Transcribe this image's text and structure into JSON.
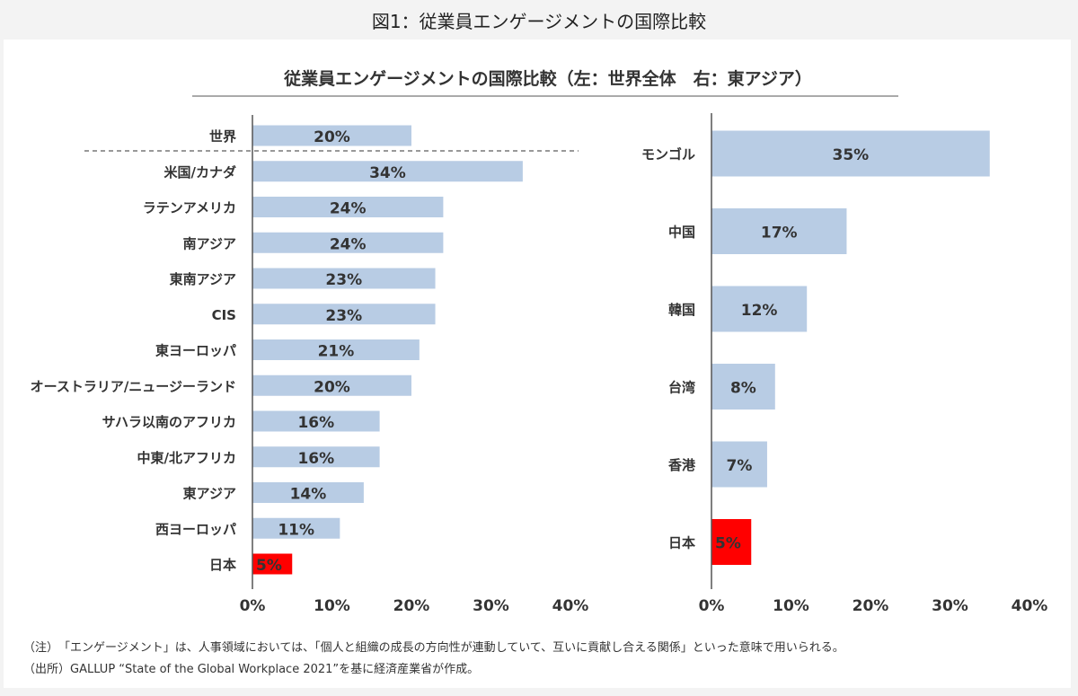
{
  "caption": "図1：従業員エンゲージメントの国際比較",
  "chart_data": [
    {
      "type": "bar",
      "orientation": "horizontal",
      "title": "従業員エンゲージメントの国際比較（左：世界全体　右：東アジア）",
      "categories": [
        "世界",
        "米国/カナダ",
        "ラテンアメリカ",
        "南アジア",
        "東南アジア",
        "CIS",
        "東ヨーロッパ",
        "オーストラリア/ニュージーランド",
        "サハラ以南のアフリカ",
        "中東/北アフリカ",
        "東アジア",
        "西ヨーロッパ",
        "日本"
      ],
      "values": [
        20,
        34,
        24,
        24,
        23,
        23,
        21,
        20,
        16,
        16,
        14,
        11,
        5
      ],
      "value_labels": [
        "20%",
        "34%",
        "24%",
        "24%",
        "23%",
        "23%",
        "21%",
        "20%",
        "16%",
        "16%",
        "14%",
        "11%",
        "5%"
      ],
      "highlight": "日本",
      "xlim": [
        0,
        40
      ],
      "xticks": [
        "0%",
        "10%",
        "20%",
        "30%",
        "40%"
      ]
    },
    {
      "type": "bar",
      "orientation": "horizontal",
      "categories": [
        "モンゴル",
        "中国",
        "韓国",
        "台湾",
        "香港",
        "日本"
      ],
      "values": [
        35,
        17,
        12,
        8,
        7,
        5
      ],
      "value_labels": [
        "35%",
        "17%",
        "12%",
        "8%",
        "7%",
        "5%"
      ],
      "highlight": "日本",
      "xlim": [
        0,
        40
      ],
      "xticks": [
        "0%",
        "10%",
        "20%",
        "30%",
        "40%"
      ]
    }
  ],
  "notes": {
    "note": "（注）　「エンゲージメント」は、人事領域においては、「個人と組織の成長の方向性が連動していて、互いに貢献し合える関係」といった意味で用いられる。",
    "source": "（出所）GALLUP “State of the Global Workplace 2021”を基に経済産業省が作成。"
  },
  "colors": {
    "bar": "#b8cce4",
    "highlight": "#ff0000",
    "axis": "#555555"
  }
}
